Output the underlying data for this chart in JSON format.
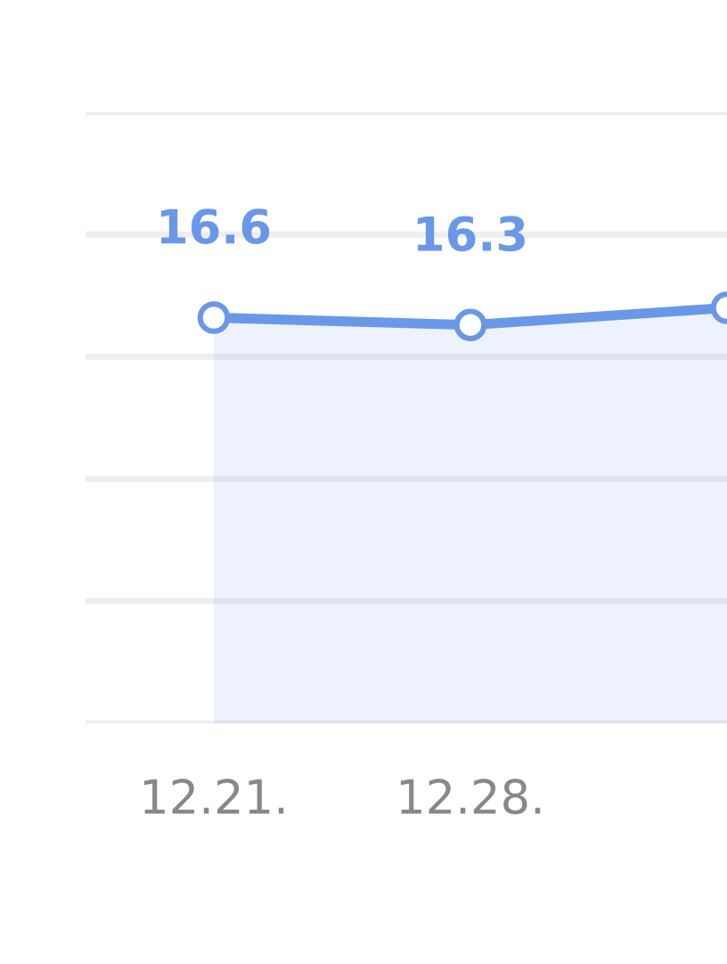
{
  "chart_data": {
    "type": "area",
    "categories": [
      "12.21.",
      "12.28.",
      null
    ],
    "series": [
      {
        "color": "#6a98e8",
        "values": [
          16.6,
          16.3,
          17.0
        ],
        "value_labels": [
          "16.6",
          "16.3",
          null
        ]
      }
    ],
    "ylim": [
      0,
      25
    ],
    "yticks": [
      {
        "value": 0,
        "label": null
      },
      {
        "value": 5,
        "label": null
      },
      {
        "value": 10,
        "label": null
      },
      {
        "value": 15,
        "label": null
      },
      {
        "value": 20,
        "label": null
      },
      {
        "value": 25,
        "label": null
      }
    ],
    "grid": "y",
    "marker": "circle",
    "line_style": "solid",
    "tick_labels": "x",
    "legend": false
  }
}
